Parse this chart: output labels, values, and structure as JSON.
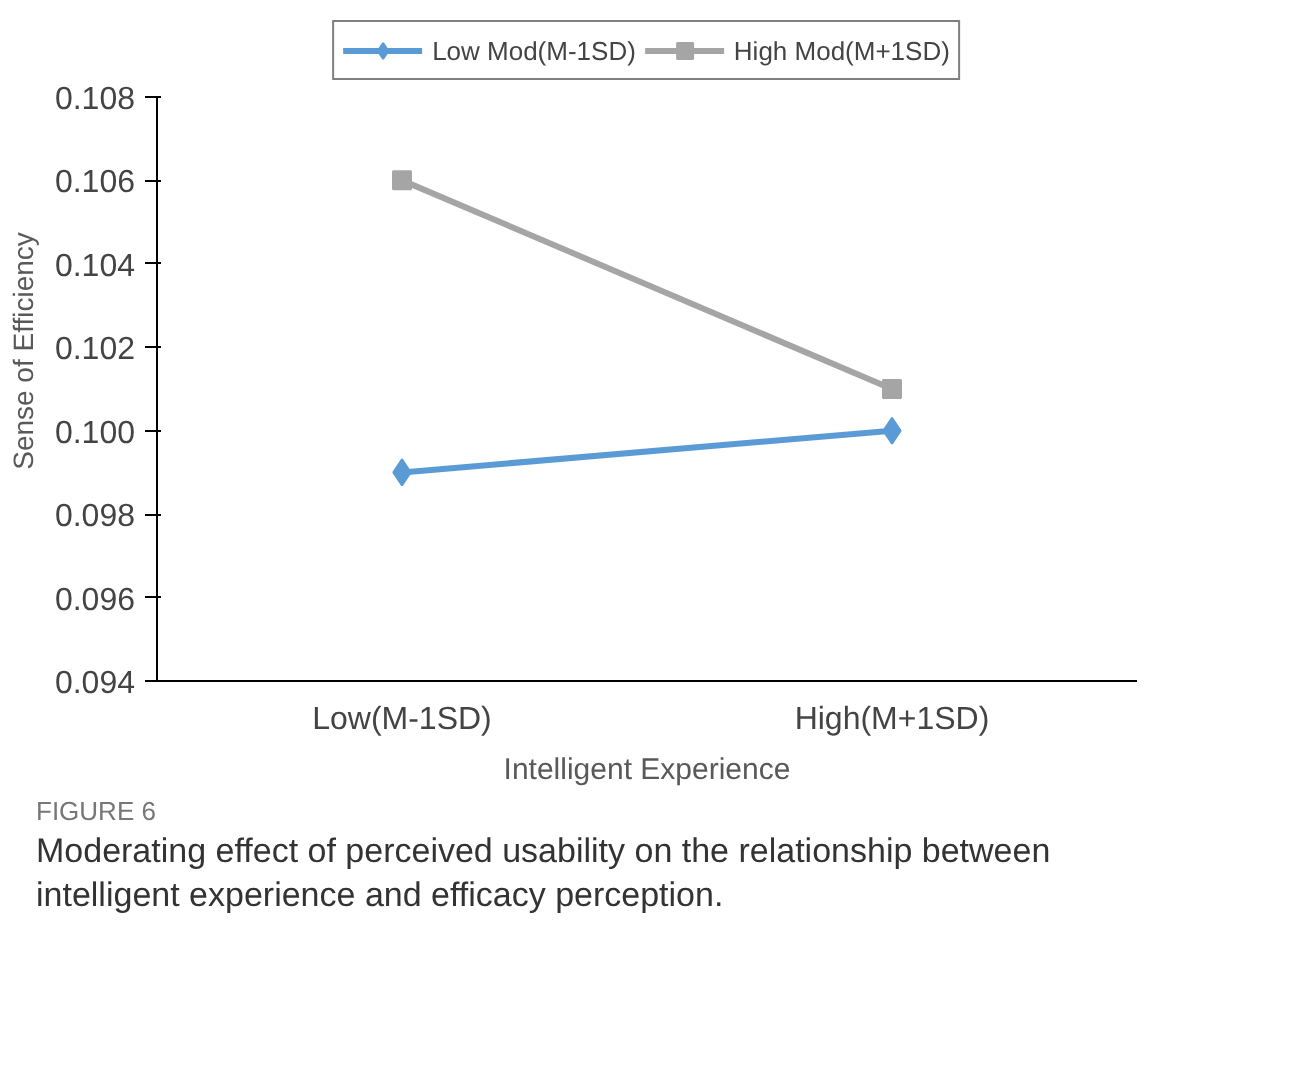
{
  "chart_data": {
    "type": "line",
    "xlabel": "Intelligent Experience",
    "ylabel": "Sense of Efficiency",
    "categories": [
      "Low(M-1SD)",
      "High(M+1SD)"
    ],
    "series": [
      {
        "name": "Low Mod(M-1SD)",
        "color": "#5b9bd5",
        "values": [
          0.099,
          0.1
        ],
        "marker": "diamond"
      },
      {
        "name": "High Mod(M+1SD)",
        "color": "#a5a5a5",
        "values": [
          0.106,
          0.101
        ],
        "marker": "square"
      }
    ],
    "ylim": [
      0.094,
      0.108
    ],
    "yticks": [
      0.094,
      0.096,
      0.098,
      {
        "value": 0.1,
        "label": "0.100"
      },
      0.102,
      0.104,
      0.106,
      0.108
    ],
    "grid": false,
    "legend": "top",
    "line_style": "solid",
    "annotations": [
      "FIGURE 6",
      "Moderating effect of perceived usability on the relationship between",
      "intelligent experience and efficacy perception."
    ]
  }
}
